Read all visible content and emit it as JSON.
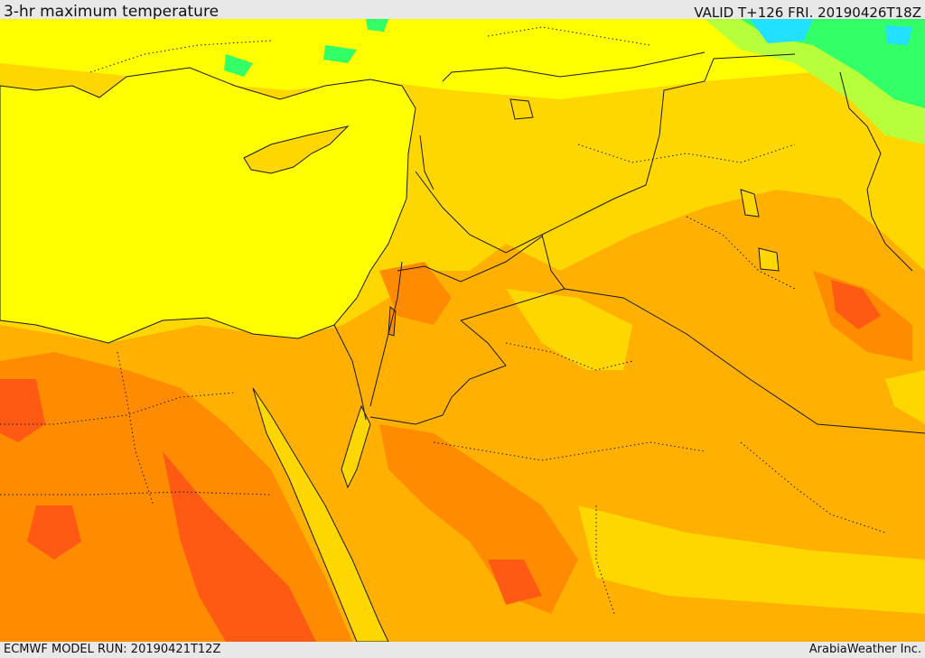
{
  "header": {
    "title": "3-hr maximum temperature",
    "valid_label": "VALID T+126 FRI. 20190426T18Z"
  },
  "footer": {
    "model_run": "ECMWF MODEL RUN: 20190421T12Z",
    "credit": "ArabiaWeather Inc."
  },
  "map": {
    "field": "temperature",
    "region": "eastern-mediterranean-middle-east",
    "colors": {
      "sea": "#ffff00",
      "warm": "#ffd700",
      "warmer": "#ffb000",
      "hot": "#ff8c00",
      "very_hot": "#ff5a14",
      "mild": "#b6ff3a",
      "cool": "#33ff66",
      "cold": "#22e0ff",
      "borders": "#1a1a1a"
    }
  }
}
